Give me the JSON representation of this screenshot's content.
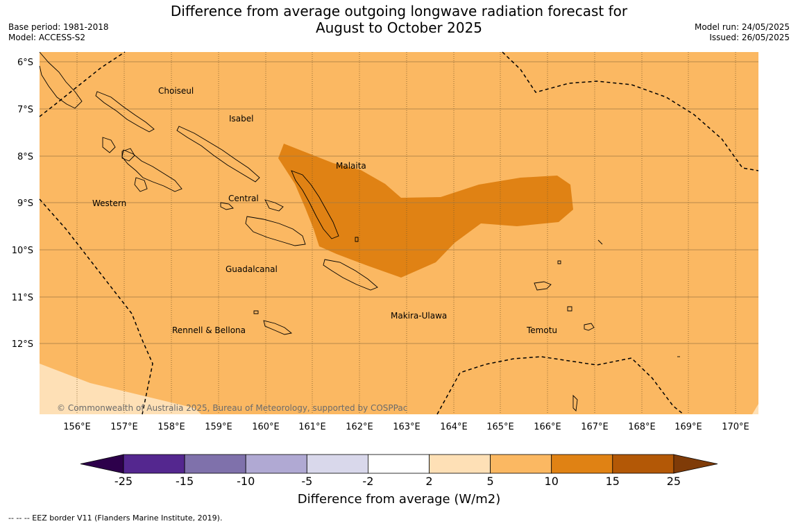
{
  "title_line1": "Difference from average outgoing longwave radiation forecast for",
  "title_line2": "August to October 2025",
  "base_period": "Base period: 1981-2018",
  "model": "Model: ACCESS-S2",
  "model_run": "Model run: 24/05/2025",
  "issued": "Issued: 26/05/2025",
  "copyright": "© Commonwealth of Australia 2025, Bureau of Meteorology, supported by COSPPac",
  "regions": [
    "Choiseul",
    "Isabel",
    "Malaita",
    "Western",
    "Central",
    "Guadalcanal",
    "Makira-Ulawa",
    "Rennell & Bellona",
    "Temotu"
  ],
  "lat_labels": [
    "6°S",
    "7°S",
    "8°S",
    "9°S",
    "10°S",
    "11°S",
    "12°S"
  ],
  "lon_labels": [
    "156°E",
    "157°E",
    "158°E",
    "159°E",
    "160°E",
    "161°E",
    "162°E",
    "163°E",
    "164°E",
    "165°E",
    "166°E",
    "167°E",
    "168°E",
    "169°E",
    "170°E"
  ],
  "colorbar": {
    "ticks": [
      "-25",
      "-15",
      "-10",
      "-5",
      "-2",
      "2",
      "5",
      "10",
      "15",
      "25"
    ],
    "colors": [
      "#54278f",
      "#7f71ab",
      "#b0a9d3",
      "#d9d8eb",
      "#ffffff",
      "#fee0b6",
      "#fbb862",
      "#e08214",
      "#b35806"
    ],
    "under_color": "#2d004b",
    "over_color": "#7f3b08",
    "title": "Difference from average (W/m2)"
  },
  "footnote": "--  --  -- EEZ border V11 (Flanders Marine Institute, 2019)."
}
